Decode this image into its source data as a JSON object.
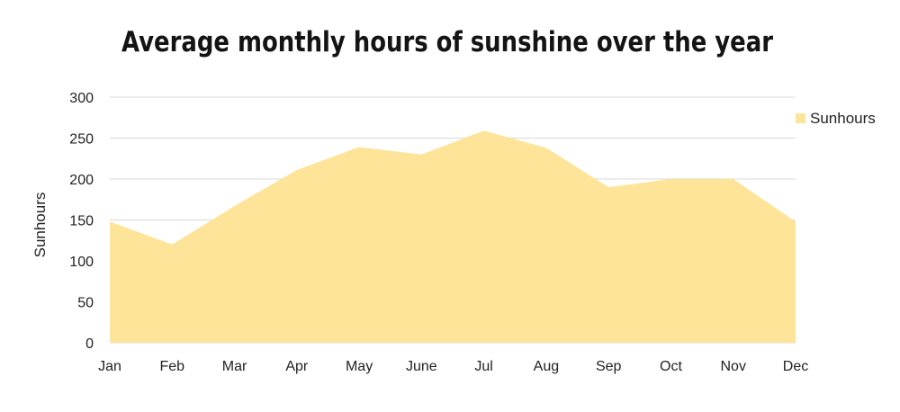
{
  "chart_data": {
    "type": "area",
    "title": "Average monthly hours of sunshine over the year",
    "xlabel": "",
    "ylabel": "Sunhours",
    "categories": [
      "Jan",
      "Feb",
      "Mar",
      "Apr",
      "May",
      "June",
      "Jul",
      "Aug",
      "Sep",
      "Oct",
      "Nov",
      "Dec"
    ],
    "series": [
      {
        "name": "Sunhours",
        "values": [
          148,
          120,
          167,
          211,
          239,
          230,
          259,
          238,
          190,
          200,
          200,
          148
        ],
        "color": "#fde499"
      }
    ],
    "ylim": [
      0,
      300
    ],
    "yticks": [
      "0",
      "50",
      "100",
      "150",
      "200",
      "250",
      "300"
    ],
    "grid": true,
    "legend_position": "right"
  }
}
